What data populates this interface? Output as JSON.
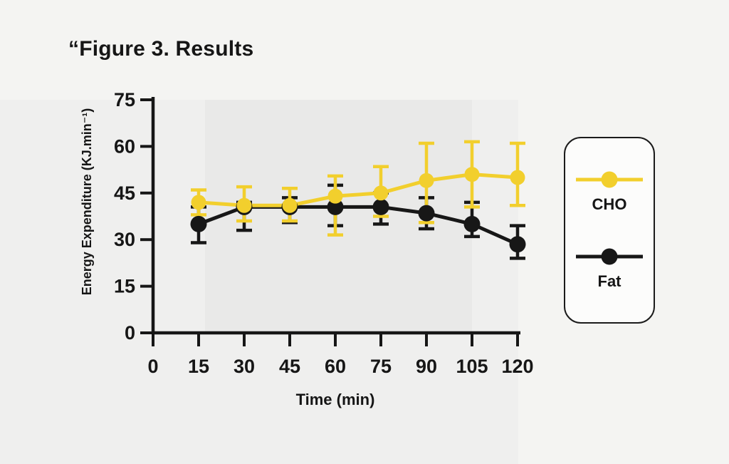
{
  "title": "“Figure 3. Results",
  "colors": {
    "background": "#f4f4f2",
    "panel": "#efefee",
    "band": "#e9e9e8",
    "axis": "#161616",
    "cho": "#f2cf2d",
    "fat": "#171717",
    "legend_bg": "#fcfcfb",
    "legend_border": "#1b1b1b"
  },
  "chart_data": {
    "type": "line",
    "title": "Figure 3. Results",
    "xlabel": "Time (min)",
    "ylabel": "Energy Expenditure (KJ.min⁻¹)",
    "x_ticks": [
      0,
      15,
      30,
      45,
      60,
      75,
      90,
      105,
      120
    ],
    "y_ticks": [
      0,
      15,
      30,
      45,
      60,
      75
    ],
    "xlim": [
      0,
      120
    ],
    "ylim": [
      0,
      75
    ],
    "grid": false,
    "legend_position": "right",
    "x": [
      15,
      30,
      45,
      60,
      75,
      90,
      105,
      120
    ],
    "series": [
      {
        "name": "CHO",
        "color": "#f2cf2d",
        "marker": "circle",
        "values": [
          42,
          41,
          41,
          44,
          45,
          49,
          51,
          50
        ],
        "error_low": [
          38,
          36,
          36,
          31.5,
          37.5,
          35.5,
          40.5,
          41
        ],
        "error_high": [
          46,
          47,
          46.5,
          50.5,
          53.5,
          61,
          61.5,
          61
        ]
      },
      {
        "name": "Fat",
        "color": "#171717",
        "marker": "circle",
        "values": [
          35,
          40.5,
          40.5,
          40.5,
          40.5,
          38.5,
          35,
          28.5
        ],
        "error_low": [
          29,
          33,
          35.5,
          34.5,
          35,
          33.5,
          31,
          24
        ],
        "error_high": [
          40.5,
          42,
          43.5,
          47.5,
          45,
          43.5,
          42,
          34.5
        ]
      }
    ]
  },
  "legend": {
    "items": [
      {
        "label": "CHO",
        "color": "#f2cf2d"
      },
      {
        "label": "Fat",
        "color": "#171717"
      }
    ]
  }
}
